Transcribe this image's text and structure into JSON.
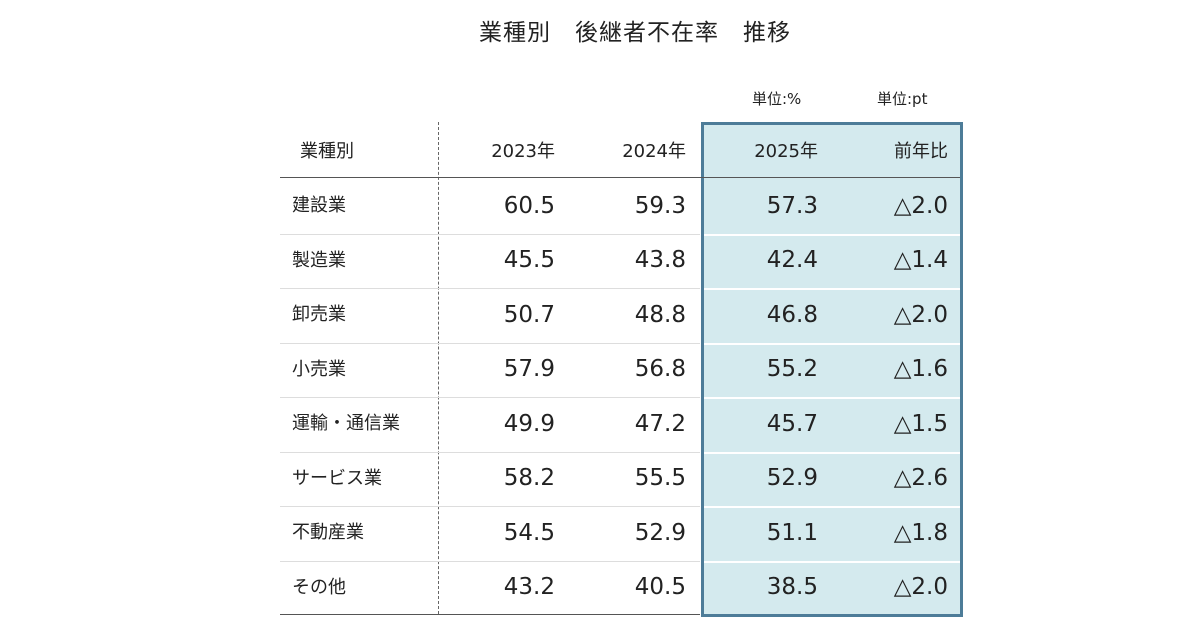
{
  "header": {
    "title": "業種別　後継者不在率　推移"
  },
  "units": [
    "単位:%",
    "単位:pt"
  ],
  "table": {
    "columns": [
      "業種別",
      "2023年",
      "2024年",
      "2025年",
      "前年比"
    ],
    "rows": [
      [
        "建設業",
        60.5,
        59.3,
        57.3,
        "△2.0"
      ],
      [
        "製造業",
        45.5,
        43.8,
        42.4,
        "△1.4"
      ],
      [
        "卸売業",
        50.7,
        48.8,
        46.8,
        "△2.0"
      ],
      [
        "小売業",
        57.9,
        56.8,
        55.2,
        "△1.6"
      ],
      [
        "運輸・通信業",
        49.9,
        47.2,
        45.7,
        "△1.5"
      ],
      [
        "サービス業",
        58.2,
        55.5,
        52.9,
        "△2.6"
      ],
      [
        "不動産業",
        54.5,
        52.9,
        51.1,
        "△1.8"
      ],
      [
        "その他",
        43.2,
        40.5,
        38.5,
        "△2.0"
      ]
    ]
  }
}
